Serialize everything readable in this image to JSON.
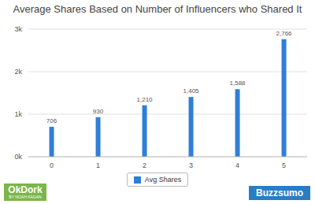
{
  "chart_data": {
    "type": "bar",
    "title": "Average Shares Based on Number of Influencers who Shared It",
    "categories": [
      "0",
      "1",
      "2",
      "3",
      "4",
      "5"
    ],
    "series": [
      {
        "name": "Avg Shares",
        "color": "#2f7ed8",
        "values": [
          706,
          930,
          1210,
          1405,
          1588,
          2766
        ],
        "value_labels": [
          "706",
          "930",
          "1,210",
          "1,405",
          "1,588",
          "2,766"
        ]
      }
    ],
    "ylim": [
      0,
      3000
    ],
    "yticks": [
      {
        "value": 0,
        "label": "0k"
      },
      {
        "value": 1000,
        "label": "1k"
      },
      {
        "value": 2000,
        "label": "2k"
      },
      {
        "value": 3000,
        "label": "3k"
      }
    ],
    "grid": true,
    "legend": "bottom",
    "data_labels": true,
    "annotations": [
      "OkDork",
      "BY NOAH KAGAN",
      "Buzzsumo"
    ]
  }
}
